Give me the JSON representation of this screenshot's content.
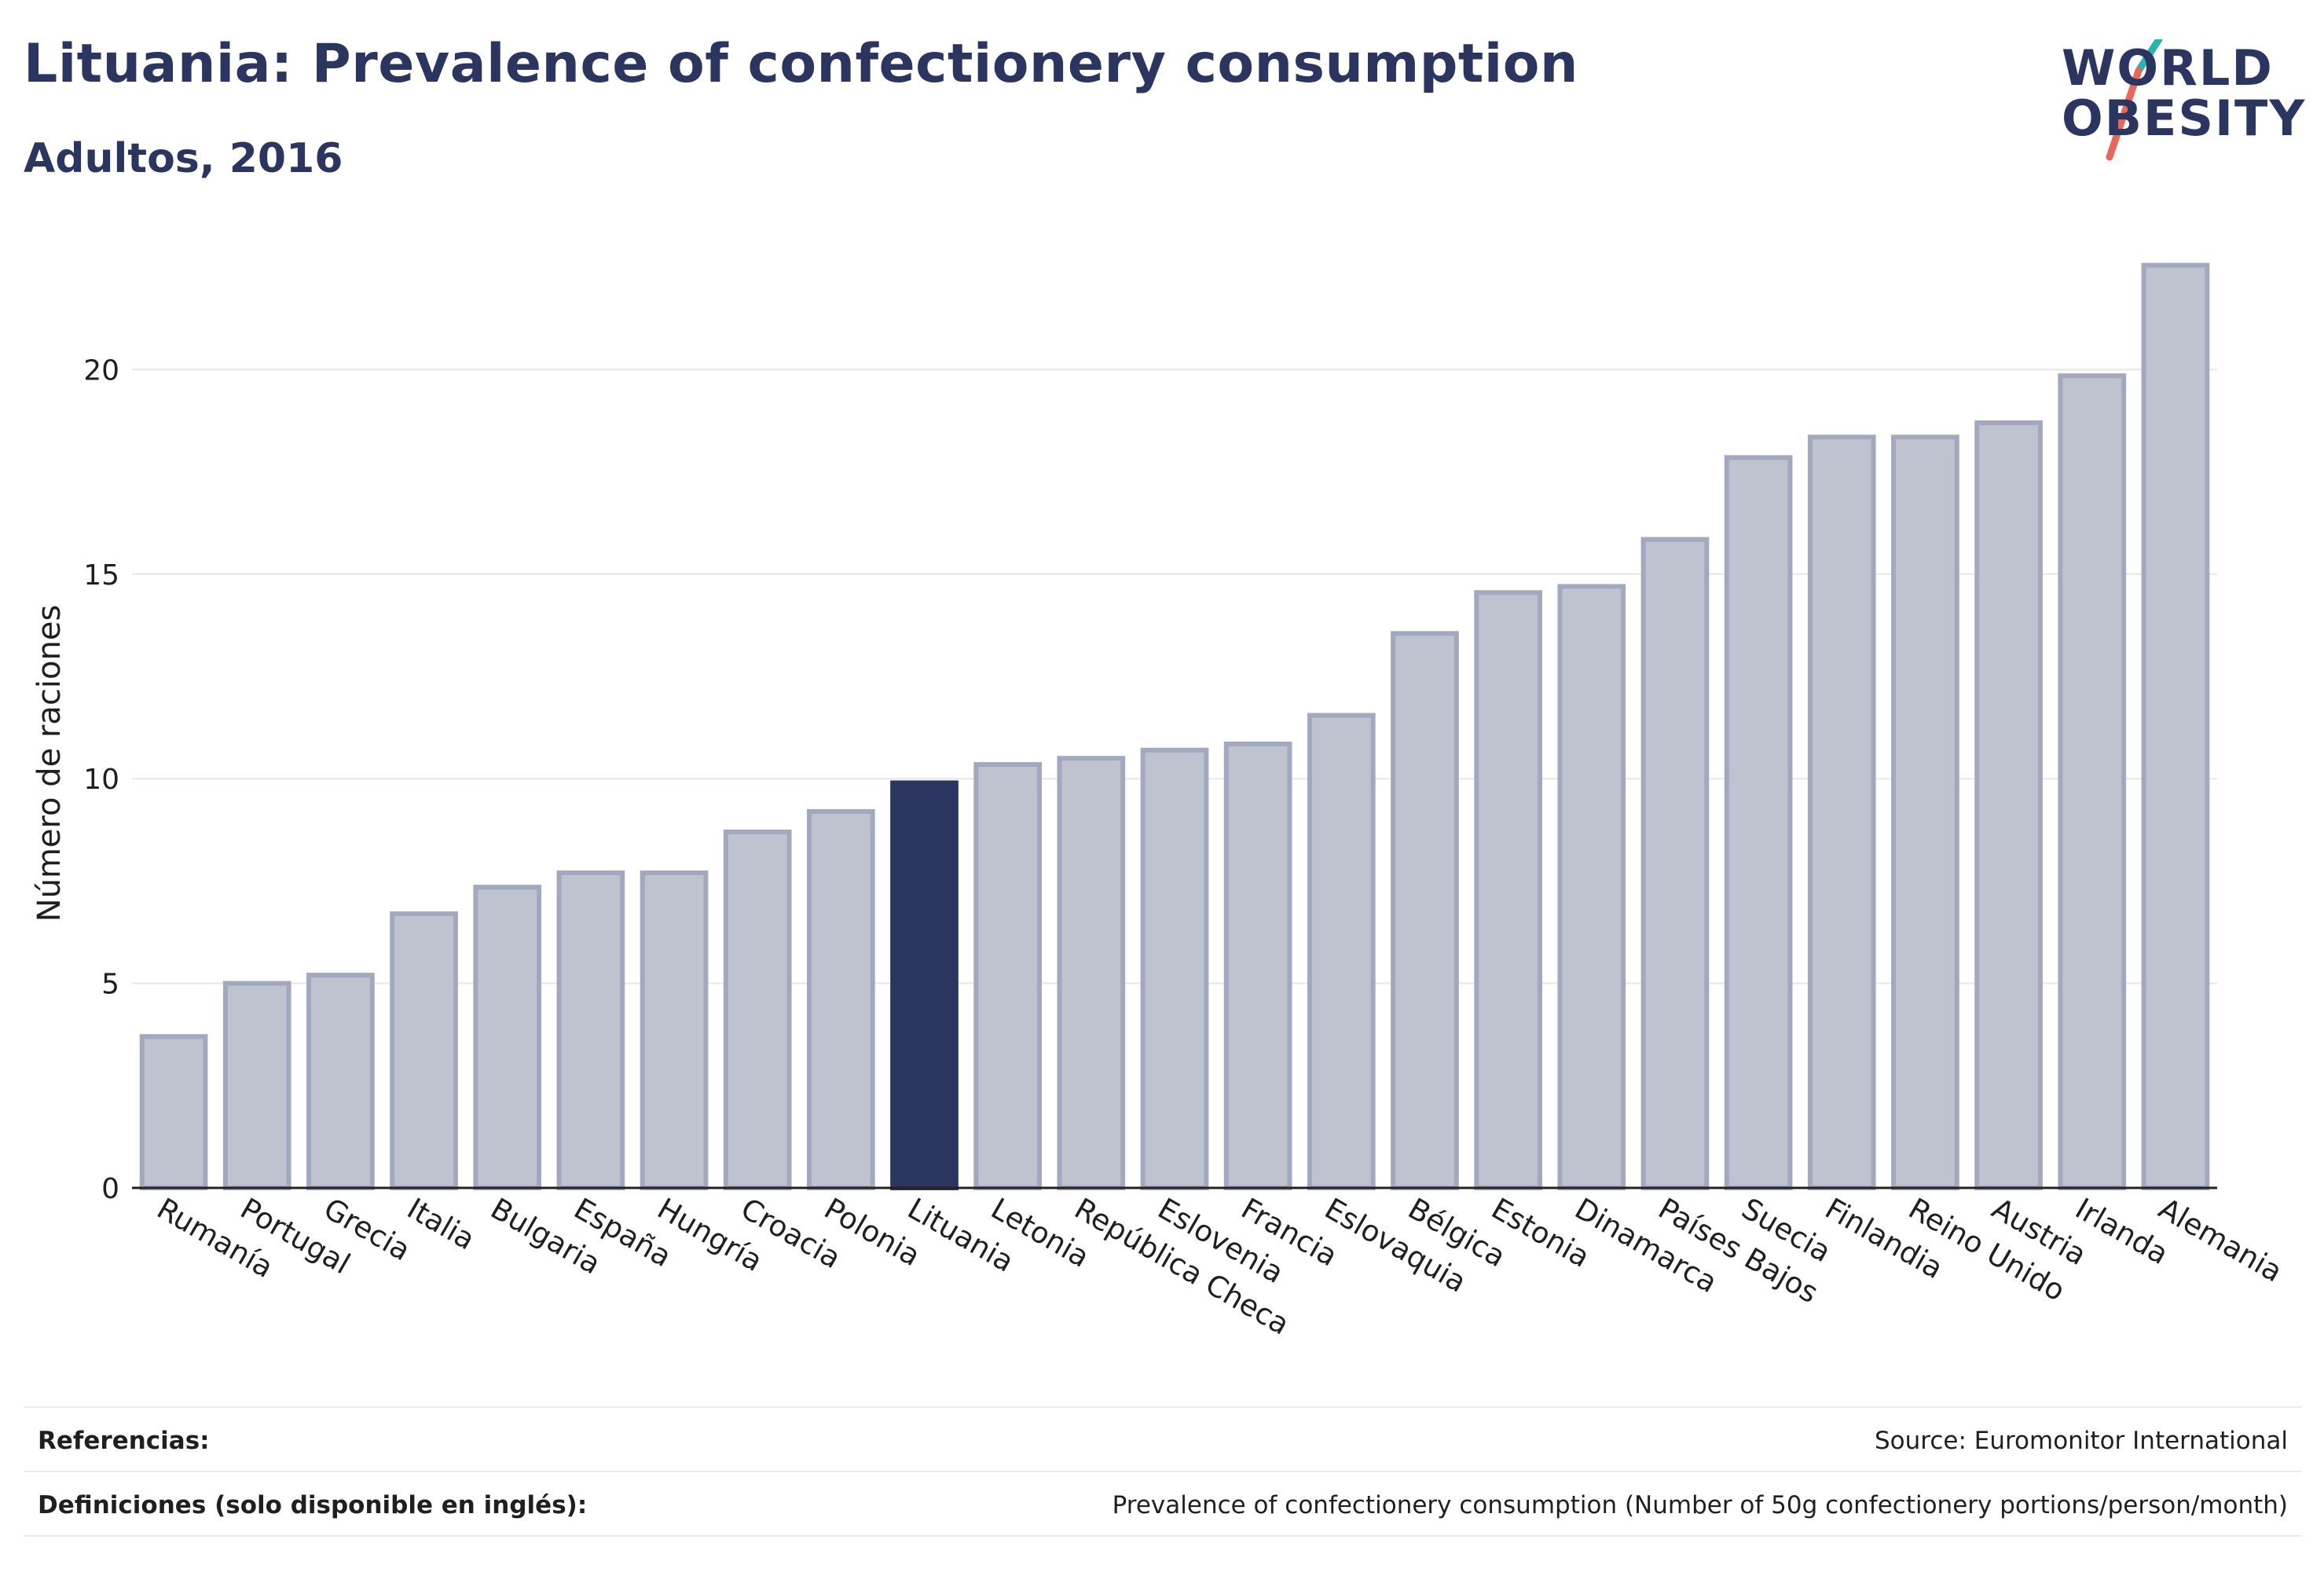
{
  "header": {
    "title": "Lituania: Prevalence of confectionery consumption",
    "subtitle": "Adultos, 2016"
  },
  "logo": {
    "line1": "WORLD",
    "line2": "OBESITY",
    "icon": "world-obesity-slash-logo",
    "colors": {
      "text": "#2a3560",
      "slash_top": "#2ab3b1",
      "slash_bottom": "#e8665a"
    }
  },
  "colors": {
    "highlight_bar": "#2a3560",
    "bar_fill": "#bfc3d0",
    "bar_stroke": "#a2a8bd",
    "grid": "#e6e6e6",
    "axis": "#222222"
  },
  "chart_data": {
    "type": "bar",
    "title": "",
    "xlabel": "",
    "ylabel": "Número de raciones",
    "ylim": [
      0,
      22.6
    ],
    "yticks": [
      0,
      5,
      10,
      15,
      20
    ],
    "grid": true,
    "highlight": "Lituania",
    "categories": [
      "Rumanía",
      "Portugal",
      "Grecia",
      "Italia",
      "Bulgaria",
      "España",
      "Hungría",
      "Croacia",
      "Polonia",
      "Lituania",
      "Letonia",
      "República Checa",
      "Eslovenia",
      "Francia",
      "Eslovaquia",
      "Bélgica",
      "Estonia",
      "Dinamarca",
      "Países Bajos",
      "Suecia",
      "Finlandia",
      "Reino Unido",
      "Austria",
      "Irlanda",
      "Alemania"
    ],
    "values": [
      3.7,
      5.0,
      5.2,
      6.7,
      7.35,
      7.7,
      7.7,
      8.7,
      9.2,
      9.9,
      10.35,
      10.5,
      10.7,
      10.85,
      11.55,
      13.55,
      14.55,
      14.7,
      15.85,
      17.85,
      18.35,
      18.35,
      18.7,
      19.85,
      22.55
    ]
  },
  "footer": {
    "references_label": "Referencias:",
    "references_value": "Source: Euromonitor International",
    "definitions_label": "Definiciones (solo disponible en inglés):",
    "definitions_value": "Prevalence of confectionery consumption (Number of 50g confectionery portions/person/month)"
  }
}
